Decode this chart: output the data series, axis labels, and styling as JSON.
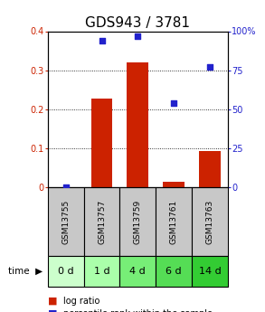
{
  "title": "GDS943 / 3781",
  "samples": [
    "GSM13755",
    "GSM13757",
    "GSM13759",
    "GSM13761",
    "GSM13763"
  ],
  "time_labels": [
    "0 d",
    "1 d",
    "4 d",
    "6 d",
    "14 d"
  ],
  "log_ratio": [
    0.0,
    0.228,
    0.32,
    0.013,
    0.093
  ],
  "percentile_rank": [
    0.0,
    0.94,
    0.97,
    0.54,
    0.77
  ],
  "bar_color": "#cc2200",
  "dot_color": "#2222cc",
  "left_ylim": [
    0,
    0.4
  ],
  "right_ylim": [
    0,
    1.0
  ],
  "left_yticks": [
    0,
    0.1,
    0.2,
    0.3,
    0.4
  ],
  "right_yticks": [
    0,
    0.25,
    0.5,
    0.75,
    1.0
  ],
  "right_yticklabels": [
    "0",
    "25",
    "50",
    "75",
    "100%"
  ],
  "sample_bg_color": "#c8c8c8",
  "time_bg_colors": [
    "#ccffcc",
    "#aaffaa",
    "#77ee77",
    "#55dd55",
    "#33cc33"
  ],
  "title_fontsize": 11,
  "tick_fontsize": 7,
  "legend_fontsize": 7,
  "sample_fontsize": 6.5,
  "time_fontsize": 8
}
